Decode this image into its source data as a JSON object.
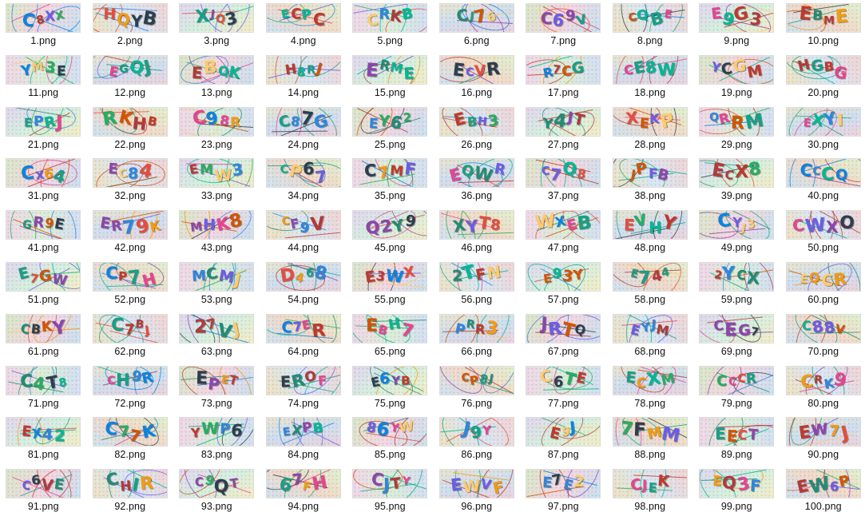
{
  "files": [
    {
      "name": "1.png",
      "captcha": "C8XX"
    },
    {
      "name": "2.png",
      "captcha": "HQYB"
    },
    {
      "name": "3.png",
      "captcha": "XJQ3"
    },
    {
      "name": "4.png",
      "captcha": "ECPC"
    },
    {
      "name": "5.png",
      "captcha": "CRKB"
    },
    {
      "name": "6.png",
      "captcha": "CJ76"
    },
    {
      "name": "7.png",
      "captcha": "C69V"
    },
    {
      "name": "8.png",
      "captcha": "CQBE"
    },
    {
      "name": "9.png",
      "captcha": "E9G3"
    },
    {
      "name": "10.png",
      "captcha": "EBME"
    },
    {
      "name": "11.png",
      "captcha": "YM3E"
    },
    {
      "name": "12.png",
      "captcha": "EGQJ"
    },
    {
      "name": "13.png",
      "captcha": "EBQK"
    },
    {
      "name": "14.png",
      "captcha": "H8RJ"
    },
    {
      "name": "15.png",
      "captcha": "ERME"
    },
    {
      "name": "16.png",
      "captcha": "ECVR"
    },
    {
      "name": "17.png",
      "captcha": "R7CG"
    },
    {
      "name": "18.png",
      "captcha": "CE8W"
    },
    {
      "name": "19.png",
      "captcha": "YCGM"
    },
    {
      "name": "20.png",
      "captcha": "HGBG"
    },
    {
      "name": "21.png",
      "captcha": "EPRJ"
    },
    {
      "name": "22.png",
      "captcha": "RKHB"
    },
    {
      "name": "23.png",
      "captcha": "C98R"
    },
    {
      "name": "24.png",
      "captcha": "C87G"
    },
    {
      "name": "25.png",
      "captcha": "EY62"
    },
    {
      "name": "26.png",
      "captcha": "EBH3"
    },
    {
      "name": "27.png",
      "captcha": "Y4JT"
    },
    {
      "name": "28.png",
      "captcha": "XEKP"
    },
    {
      "name": "29.png",
      "captcha": "QRRM"
    },
    {
      "name": "30.png",
      "captcha": "EXYI"
    },
    {
      "name": "31.png",
      "captcha": "CX64"
    },
    {
      "name": "32.png",
      "captcha": "EC84"
    },
    {
      "name": "33.png",
      "captcha": "EMW3"
    },
    {
      "name": "34.png",
      "captcha": "CP67"
    },
    {
      "name": "35.png",
      "captcha": "C7MF"
    },
    {
      "name": "36.png",
      "captcha": "EQWR"
    },
    {
      "name": "37.png",
      "captcha": "C7Q8"
    },
    {
      "name": "38.png",
      "captcha": "JPFB"
    },
    {
      "name": "39.png",
      "captcha": "ECX8"
    },
    {
      "name": "40.png",
      "captcha": "CCCQ"
    },
    {
      "name": "41.png",
      "captcha": "GR9E"
    },
    {
      "name": "42.png",
      "captcha": "ER79K"
    },
    {
      "name": "43.png",
      "captcha": "MHK8"
    },
    {
      "name": "44.png",
      "captcha": "CF9V"
    },
    {
      "name": "45.png",
      "captcha": "Q2Y9"
    },
    {
      "name": "46.png",
      "captcha": "XYT8"
    },
    {
      "name": "47.png",
      "captcha": "WXEB"
    },
    {
      "name": "48.png",
      "captcha": "EVHY"
    },
    {
      "name": "49.png",
      "captcha": "CYJ3"
    },
    {
      "name": "50.png",
      "captcha": "CWXO"
    },
    {
      "name": "51.png",
      "captcha": "E7GW"
    },
    {
      "name": "52.png",
      "captcha": "CP7H"
    },
    {
      "name": "53.png",
      "captcha": "MCMJ"
    },
    {
      "name": "54.png",
      "captcha": "D468"
    },
    {
      "name": "55.png",
      "captcha": "E3WX"
    },
    {
      "name": "56.png",
      "captcha": "2TFN"
    },
    {
      "name": "57.png",
      "captcha": "E93Y"
    },
    {
      "name": "58.png",
      "captcha": "E744"
    },
    {
      "name": "59.png",
      "captcha": "2YCX"
    },
    {
      "name": "60.png",
      "captcha": "EQCR"
    },
    {
      "name": "61.png",
      "captcha": "CBKY"
    },
    {
      "name": "62.png",
      "captcha": "C7BJ"
    },
    {
      "name": "63.png",
      "captcha": "27VJ"
    },
    {
      "name": "64.png",
      "captcha": "C7ER"
    },
    {
      "name": "65.png",
      "captcha": "EBH7"
    },
    {
      "name": "66.png",
      "captcha": "PRR3"
    },
    {
      "name": "67.png",
      "captcha": "JRTQ"
    },
    {
      "name": "68.png",
      "captcha": "EYJM"
    },
    {
      "name": "69.png",
      "captcha": "CEG7"
    },
    {
      "name": "70.png",
      "captcha": "C88V"
    },
    {
      "name": "71.png",
      "captcha": "C4T8"
    },
    {
      "name": "72.png",
      "captcha": "CH9R"
    },
    {
      "name": "73.png",
      "captcha": "EPET"
    },
    {
      "name": "74.png",
      "captcha": "EROF"
    },
    {
      "name": "75.png",
      "captcha": "E6YB"
    },
    {
      "name": "76.png",
      "captcha": "CP8J"
    },
    {
      "name": "77.png",
      "captcha": "C6TE"
    },
    {
      "name": "78.png",
      "captcha": "ECXM"
    },
    {
      "name": "79.png",
      "captcha": "CCCR"
    },
    {
      "name": "80.png",
      "captcha": "CRK9"
    },
    {
      "name": "81.png",
      "captcha": "EX42"
    },
    {
      "name": "82.png",
      "captcha": "C77K"
    },
    {
      "name": "83.png",
      "captcha": "YWP6"
    },
    {
      "name": "84.png",
      "captcha": "EXPB"
    },
    {
      "name": "85.png",
      "captcha": "86YW"
    },
    {
      "name": "86.png",
      "captcha": "J9Y"
    },
    {
      "name": "87.png",
      "captcha": "E9J"
    },
    {
      "name": "88.png",
      "captcha": "7FMM"
    },
    {
      "name": "89.png",
      "captcha": "EECT"
    },
    {
      "name": "90.png",
      "captcha": "EW7J"
    },
    {
      "name": "91.png",
      "captcha": "C6VE"
    },
    {
      "name": "92.png",
      "captcha": "CHIR"
    },
    {
      "name": "93.png",
      "captcha": "C9QT"
    },
    {
      "name": "94.png",
      "captcha": "67FH"
    },
    {
      "name": "95.png",
      "captcha": "CJTY"
    },
    {
      "name": "96.png",
      "captcha": "EWVF"
    },
    {
      "name": "97.png",
      "captcha": "E7E2"
    },
    {
      "name": "98.png",
      "captcha": "CJEK"
    },
    {
      "name": "99.png",
      "captcha": "EQ3F"
    },
    {
      "name": "100.png",
      "captcha": "EW6P"
    }
  ],
  "icons": {
    "thumbnail": "captcha-image-thumbnail"
  }
}
